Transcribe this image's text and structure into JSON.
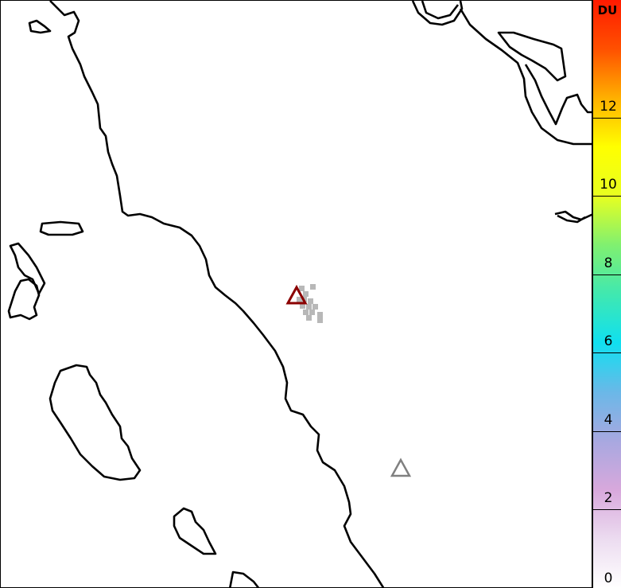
{
  "colorbar": {
    "unit": "DU",
    "ticks": [
      "0",
      "2",
      "4",
      "6",
      "8",
      "10",
      "12"
    ],
    "range": [
      0,
      15
    ],
    "colors": [
      "#ffffff",
      "#ecdcf0",
      "#d8a8dc",
      "#a8a8e0",
      "#6ab8e8",
      "#10e0f0",
      "#40e8b0",
      "#80f070",
      "#e8ff20",
      "#ffff00",
      "#ffb000",
      "#ff5000",
      "#ff1a00"
    ]
  },
  "markers": [
    {
      "name": "volcano-active",
      "color": "#8b0000"
    },
    {
      "name": "volcano",
      "color": "#808080"
    }
  ],
  "pixel_color": "#b8b8b8"
}
